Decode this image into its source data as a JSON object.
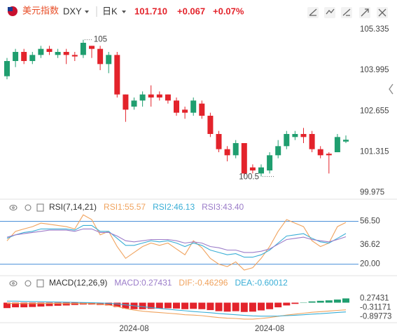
{
  "header": {
    "name": "美元指数",
    "symbol": "DXY",
    "period": "日K",
    "price": "101.710",
    "change": "+0.067",
    "change_pct": "+0.07%"
  },
  "chart_data": [
    {
      "type": "candlestick",
      "up_color": "#1f9e6f",
      "down_color": "#e3232b",
      "categories": [
        null,
        null,
        null,
        null,
        null,
        null,
        null,
        null,
        null,
        null,
        null,
        null,
        null,
        null,
        null,
        "2024-08",
        null,
        null,
        null,
        null,
        null,
        null,
        null,
        null,
        null,
        null,
        null,
        null,
        null,
        null,
        null,
        "2024-08",
        null,
        null,
        null,
        null,
        null,
        null,
        null,
        null,
        null
      ],
      "open": [
        103.8,
        104.3,
        104.6,
        104.3,
        104.5,
        104.7,
        104.5,
        104.6,
        104.5,
        104.5,
        104.8,
        104.7,
        104.2,
        104.5,
        103.2,
        102.8,
        103.0,
        103.2,
        103.2,
        103.2,
        103.0,
        102.7,
        102.6,
        102.9,
        102.5,
        101.9,
        101.4,
        101.2,
        101.6,
        100.8,
        100.6,
        100.7,
        101.2,
        101.5,
        101.8,
        101.9,
        101.9,
        101.4,
        101.25,
        101.3,
        101.65
      ],
      "high": [
        104.4,
        104.7,
        104.7,
        104.6,
        104.8,
        104.8,
        104.7,
        104.7,
        104.6,
        105.0,
        104.799,
        104.8,
        104.6,
        104.6,
        103.2,
        103.1,
        103.3,
        103.5,
        103.3,
        103.2,
        103.1,
        102.8,
        103.1,
        103.0,
        102.6,
        102.0,
        101.5,
        101.7,
        101.6,
        100.9,
        100.9,
        101.3,
        101.7,
        102.0,
        102.0,
        102.1,
        102.0,
        101.5,
        101.3,
        101.9,
        101.85
      ],
      "low": [
        103.7,
        104.1,
        104.2,
        104.2,
        104.4,
        104.5,
        104.4,
        104.2,
        104.3,
        104.4,
        104.4,
        104.0,
        103.9,
        103.1,
        102.3,
        102.7,
        102.8,
        102.8,
        103.0,
        102.9,
        102.5,
        102.4,
        102.5,
        102.4,
        101.8,
        101.3,
        101.0,
        101.1,
        100.511,
        100.6,
        100.5,
        100.6,
        101.1,
        101.4,
        101.7,
        101.6,
        101.3,
        101.1,
        100.6,
        101.3,
        101.6
      ],
      "close": [
        104.3,
        104.6,
        104.3,
        104.5,
        104.7,
        104.6,
        104.6,
        104.5,
        104.45,
        104.9,
        104.7,
        104.2,
        104.5,
        103.2,
        102.7,
        103.0,
        103.2,
        103.1,
        103.1,
        103.0,
        102.6,
        102.6,
        103.0,
        102.5,
        101.9,
        101.4,
        101.2,
        101.6,
        100.6,
        100.7,
        100.8,
        101.2,
        101.5,
        101.9,
        101.9,
        101.8,
        101.4,
        101.2,
        101.2,
        101.8,
        101.71
      ],
      "ylim": [
        99.8,
        105.5
      ],
      "yticks": [
        105.335,
        103.995,
        102.655,
        101.315,
        99.975
      ],
      "grid": false
    },
    {
      "type": "line",
      "title": "RSI(7,14,21)",
      "ylim": [
        12,
        64
      ],
      "yticks": [
        {
          "value": 56.5,
          "label": "56.50"
        },
        36.62,
        {
          "value": 20,
          "label": "20.00"
        }
      ],
      "series": [
        {
          "name": "RSI1:55.57",
          "color": "#f0a35e",
          "values": [
            40,
            48,
            50,
            52,
            55,
            54,
            53,
            52,
            50,
            62,
            58,
            45,
            48,
            35,
            25,
            30,
            35,
            38,
            36,
            38,
            33,
            28,
            40,
            34,
            25,
            20,
            18,
            22,
            15,
            17,
            25,
            35,
            48,
            58,
            55,
            52,
            40,
            35,
            38,
            52,
            55.57
          ]
        },
        {
          "name": "RSI2:46.13",
          "color": "#39aed6",
          "values": [
            42,
            45,
            47,
            48,
            50,
            50,
            50,
            50,
            49,
            53,
            53,
            48,
            48,
            42,
            36,
            36,
            38,
            40,
            39,
            40,
            38,
            35,
            38,
            36,
            32,
            30,
            28,
            29,
            26,
            26,
            28,
            32,
            38,
            44,
            45,
            46,
            42,
            39,
            38,
            42,
            46.13
          ]
        },
        {
          "name": "RSI3:43.40",
          "color": "#9b7cc9",
          "values": [
            43,
            45,
            46,
            47,
            48,
            49,
            49,
            49,
            48,
            50,
            50,
            47,
            47,
            44,
            40,
            39,
            40,
            41,
            41,
            41,
            40,
            38,
            39,
            38,
            35,
            34,
            32,
            32,
            30,
            30,
            31,
            33,
            37,
            41,
            42,
            43,
            41,
            40,
            39,
            41,
            43.4
          ]
        }
      ]
    },
    {
      "type": "macd",
      "title": "MACD(12,26,9)",
      "ylim": [
        -1.2,
        0.7
      ],
      "yticks": [
        0.27431,
        -0.31171,
        -0.89773
      ],
      "histogram": {
        "name": "MACD:0.27431",
        "up_color": "#1f9e6f",
        "down_color": "#e3232b",
        "values": [
          -0.35,
          -0.3,
          -0.3,
          -0.28,
          -0.25,
          -0.22,
          -0.2,
          -0.18,
          -0.15,
          -0.12,
          -0.12,
          -0.15,
          -0.18,
          -0.28,
          -0.38,
          -0.42,
          -0.42,
          -0.4,
          -0.38,
          -0.36,
          -0.38,
          -0.42,
          -0.4,
          -0.42,
          -0.48,
          -0.55,
          -0.58,
          -0.55,
          -0.6,
          -0.58,
          -0.5,
          -0.42,
          -0.3,
          -0.18,
          -0.08,
          0.02,
          0.08,
          0.12,
          0.15,
          0.2,
          0.27431
        ]
      },
      "series": [
        {
          "name": "DIF:-0.46296",
          "color": "#f0a35e",
          "values": [
            -0.05,
            -0.05,
            -0.06,
            -0.06,
            -0.05,
            -0.05,
            -0.05,
            -0.06,
            -0.06,
            -0.05,
            -0.06,
            -0.1,
            -0.15,
            -0.25,
            -0.38,
            -0.48,
            -0.55,
            -0.6,
            -0.64,
            -0.68,
            -0.72,
            -0.78,
            -0.8,
            -0.84,
            -0.9,
            -0.96,
            -1.0,
            -1.02,
            -1.06,
            -1.06,
            -1.02,
            -0.96,
            -0.88,
            -0.8,
            -0.74,
            -0.68,
            -0.62,
            -0.58,
            -0.54,
            -0.5,
            -0.46296
          ]
        },
        {
          "name": "DEA:-0.60012",
          "color": "#39aed6",
          "values": [
            0.1,
            0.1,
            0.08,
            0.07,
            0.06,
            0.05,
            0.04,
            0.03,
            0.02,
            0.01,
            0,
            -0.02,
            -0.04,
            -0.08,
            -0.14,
            -0.2,
            -0.26,
            -0.32,
            -0.37,
            -0.42,
            -0.47,
            -0.52,
            -0.57,
            -0.61,
            -0.65,
            -0.7,
            -0.74,
            -0.78,
            -0.82,
            -0.85,
            -0.87,
            -0.87,
            -0.86,
            -0.84,
            -0.81,
            -0.78,
            -0.74,
            -0.71,
            -0.67,
            -0.63,
            -0.60012
          ]
        }
      ]
    }
  ]
}
